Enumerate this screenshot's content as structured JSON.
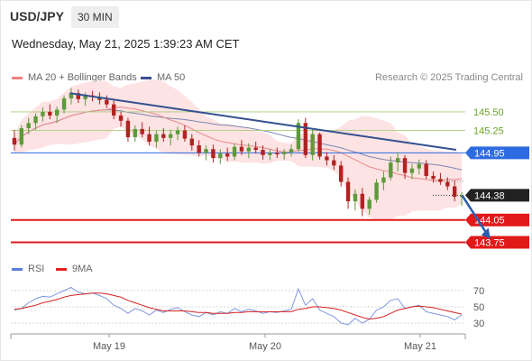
{
  "header": {
    "pair": "USD/JPY",
    "timeframe": "30 MIN",
    "datetime": "Wednesday, May 21, 2025 1:39:23 AM CET"
  },
  "legend": {
    "ma20": {
      "label": "MA 20 + Bollinger Bands",
      "color": "#f08080"
    },
    "ma50": {
      "label": "MA 50",
      "color": "#3a4f8f"
    },
    "credit": "Research © 2025 Trading Central"
  },
  "rsi_legend": {
    "rsi": {
      "label": "RSI",
      "color": "#5b7fd6"
    },
    "ma9": {
      "label": "9MA",
      "color": "#e02020"
    }
  },
  "chart_data": [
    {
      "type": "candlestick",
      "title": "USD/JPY",
      "y_axis_side": "right",
      "price_range": [
        143.55,
        145.85
      ],
      "x_ticks": [
        "May 19",
        "May 20",
        "May 21"
      ],
      "levels": [
        {
          "label": "145.50",
          "value": 145.5,
          "style": "thin-green"
        },
        {
          "label": "145.25",
          "value": 145.25,
          "style": "thin-green"
        },
        {
          "label": "144.95",
          "value": 144.95,
          "style": "blue-badge"
        },
        {
          "label": "144.38",
          "value": 144.38,
          "style": "last-price"
        },
        {
          "label": "144.05",
          "value": 144.05,
          "style": "red-badge"
        },
        {
          "label": "143.75",
          "value": 143.75,
          "style": "red-badge"
        }
      ],
      "trendline": {
        "from": {
          "x": 0.13,
          "price": 145.75
        },
        "to": {
          "x": 0.98,
          "price": 144.99
        }
      },
      "projection": {
        "from": {
          "x": 0.993,
          "price": 144.38
        },
        "to": {
          "x": 1.055,
          "price": 143.8
        }
      },
      "candles": [
        [
          145.15,
          145.26,
          144.98,
          145.06
        ],
        [
          145.06,
          145.32,
          145.02,
          145.28
        ],
        [
          145.28,
          145.42,
          145.2,
          145.35
        ],
        [
          145.35,
          145.48,
          145.26,
          145.44
        ],
        [
          145.44,
          145.56,
          145.37,
          145.5
        ],
        [
          145.5,
          145.6,
          145.4,
          145.45
        ],
        [
          145.45,
          145.57,
          145.35,
          145.53
        ],
        [
          145.53,
          145.72,
          145.48,
          145.68
        ],
        [
          145.68,
          145.82,
          145.6,
          145.75
        ],
        [
          145.75,
          145.8,
          145.62,
          145.67
        ],
        [
          145.67,
          145.76,
          145.58,
          145.72
        ],
        [
          145.72,
          145.78,
          145.64,
          145.7
        ],
        [
          145.7,
          145.76,
          145.6,
          145.66
        ],
        [
          145.66,
          145.72,
          145.55,
          145.6
        ],
        [
          145.6,
          145.65,
          145.4,
          145.45
        ],
        [
          145.45,
          145.5,
          145.3,
          145.38
        ],
        [
          145.38,
          145.42,
          145.1,
          145.16
        ],
        [
          145.16,
          145.32,
          145.1,
          145.27
        ],
        [
          145.27,
          145.36,
          145.16,
          145.2
        ],
        [
          145.2,
          145.3,
          145.05,
          145.1
        ],
        [
          145.1,
          145.25,
          145.02,
          145.2
        ],
        [
          145.2,
          145.28,
          145.1,
          145.15
        ],
        [
          145.15,
          145.26,
          145.05,
          145.2
        ],
        [
          145.2,
          145.3,
          145.12,
          145.25
        ],
        [
          145.25,
          145.32,
          145.1,
          145.14
        ],
        [
          145.14,
          145.2,
          144.98,
          145.05
        ],
        [
          145.05,
          145.12,
          144.9,
          144.95
        ],
        [
          144.95,
          145.05,
          144.85,
          145.0
        ],
        [
          145.0,
          145.06,
          144.82,
          144.88
        ],
        [
          144.88,
          145.0,
          144.8,
          144.94
        ],
        [
          144.94,
          145.02,
          144.84,
          144.9
        ],
        [
          144.9,
          145.08,
          144.85,
          145.03
        ],
        [
          145.03,
          145.12,
          144.92,
          144.97
        ],
        [
          144.97,
          145.08,
          144.88,
          145.02
        ],
        [
          145.02,
          145.1,
          144.94,
          144.99
        ],
        [
          144.99,
          145.05,
          144.86,
          144.92
        ],
        [
          144.92,
          145.0,
          144.85,
          144.95
        ],
        [
          144.95,
          145.02,
          144.88,
          144.93
        ],
        [
          144.93,
          145.0,
          144.86,
          144.96
        ],
        [
          144.96,
          145.06,
          144.9,
          145.0
        ],
        [
          145.0,
          145.4,
          144.96,
          145.35
        ],
        [
          145.35,
          145.42,
          144.88,
          144.92
        ],
        [
          144.92,
          145.28,
          144.85,
          145.2
        ],
        [
          145.2,
          145.22,
          144.86,
          144.9
        ],
        [
          144.9,
          144.96,
          144.78,
          144.85
        ],
        [
          144.85,
          144.92,
          144.72,
          144.78
        ],
        [
          144.78,
          144.84,
          144.5,
          144.56
        ],
        [
          144.56,
          144.62,
          144.2,
          144.3
        ],
        [
          144.3,
          144.46,
          144.18,
          144.4
        ],
        [
          144.4,
          144.48,
          144.1,
          144.2
        ],
        [
          144.2,
          144.36,
          144.12,
          144.32
        ],
        [
          144.32,
          144.6,
          144.28,
          144.55
        ],
        [
          144.55,
          144.7,
          144.45,
          144.62
        ],
        [
          144.62,
          144.9,
          144.58,
          144.82
        ],
        [
          144.82,
          144.96,
          144.7,
          144.88
        ],
        [
          144.88,
          144.92,
          144.6,
          144.68
        ],
        [
          144.68,
          144.8,
          144.6,
          144.74
        ],
        [
          144.74,
          144.86,
          144.66,
          144.8
        ],
        [
          144.8,
          144.85,
          144.6,
          144.64
        ],
        [
          144.64,
          144.7,
          144.55,
          144.6
        ],
        [
          144.6,
          144.68,
          144.52,
          144.56
        ],
        [
          144.56,
          144.62,
          144.45,
          144.5
        ],
        [
          144.5,
          144.58,
          144.3,
          144.36
        ],
        [
          144.36,
          144.42,
          144.24,
          144.38
        ]
      ]
    },
    {
      "type": "line",
      "title": "RSI",
      "y_ticks": [
        70,
        50,
        30
      ],
      "ylim": [
        20,
        80
      ],
      "series": [
        {
          "name": "RSI",
          "values": [
            46,
            48,
            55,
            60,
            63,
            62,
            66,
            70,
            74,
            68,
            66,
            67,
            64,
            60,
            52,
            48,
            42,
            48,
            45,
            40,
            46,
            43,
            47,
            49,
            44,
            40,
            38,
            43,
            40,
            44,
            42,
            48,
            44,
            47,
            45,
            42,
            44,
            43,
            45,
            47,
            72,
            52,
            60,
            46,
            42,
            38,
            30,
            28,
            36,
            30,
            35,
            46,
            50,
            58,
            60,
            48,
            50,
            52,
            44,
            42,
            40,
            38,
            34,
            40
          ]
        },
        {
          "name": "9MA",
          "values": [
            47,
            48,
            50,
            52,
            55,
            57,
            59,
            62,
            64,
            65,
            66,
            67,
            67,
            66,
            64,
            62,
            58,
            55,
            52,
            49,
            47,
            45,
            45,
            45,
            45,
            44,
            43,
            43,
            42,
            42,
            42,
            43,
            43,
            44,
            44,
            44,
            44,
            44,
            44,
            44,
            47,
            48,
            50,
            50,
            49,
            48,
            46,
            43,
            40,
            37,
            35,
            36,
            38,
            42,
            46,
            48,
            50,
            51,
            50,
            49,
            47,
            45,
            43,
            41
          ]
        }
      ]
    }
  ]
}
